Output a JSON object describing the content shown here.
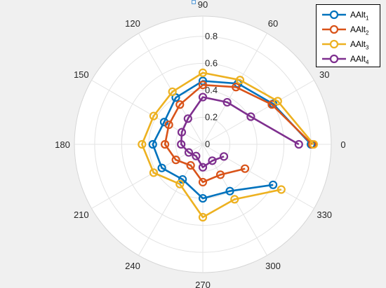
{
  "chart_data": {
    "type": "line",
    "subtype": "polar",
    "theta_unit": "degrees",
    "angle_tick_labels": [
      "0",
      "30",
      "60",
      "90",
      "120",
      "150",
      "180",
      "210",
      "240",
      "270",
      "300",
      "330"
    ],
    "angle_ticks": [
      0,
      30,
      60,
      90,
      120,
      150,
      180,
      210,
      240,
      270,
      300,
      330
    ],
    "r_tick_labels": [
      "0",
      "0.2",
      "0.4",
      "0.6",
      "0.8"
    ],
    "r_ticks": [
      0,
      0.2,
      0.4,
      0.6,
      0.8
    ],
    "rlim": [
      0,
      0.95
    ],
    "grid": true,
    "legend_position": "top-right",
    "series": [
      {
        "name": "AAlt",
        "subscript": "1",
        "color": "#0072bd",
        "theta": [
          0,
          30,
          60,
          90,
          120,
          150,
          180,
          210,
          240,
          270,
          300,
          330
        ],
        "r": [
          0.8,
          0.6,
          0.52,
          0.47,
          0.4,
          0.33,
          0.37,
          0.35,
          0.3,
          0.4,
          0.4,
          0.6
        ]
      },
      {
        "name": "AAlt",
        "subscript": "2",
        "color": "#d95319",
        "theta": [
          0,
          30,
          60,
          90,
          120,
          150,
          180,
          210,
          240,
          270,
          300,
          330
        ],
        "r": [
          0.81,
          0.59,
          0.49,
          0.44,
          0.34,
          0.29,
          0.28,
          0.23,
          0.18,
          0.28,
          0.26,
          0.36
        ]
      },
      {
        "name": "AAlt",
        "subscript": "3",
        "color": "#edb120",
        "theta": [
          0,
          30,
          60,
          90,
          120,
          150,
          180,
          210,
          240,
          270,
          300,
          330
        ],
        "r": [
          0.82,
          0.64,
          0.55,
          0.53,
          0.45,
          0.42,
          0.45,
          0.42,
          0.34,
          0.54,
          0.47,
          0.67
        ]
      },
      {
        "name": "AAlt",
        "subscript": "4",
        "color": "#7e2f8e",
        "theta": [
          0,
          30,
          60,
          90,
          120,
          150,
          180,
          210,
          240,
          270,
          300,
          330
        ],
        "r": [
          0.71,
          0.41,
          0.36,
          0.35,
          0.22,
          0.18,
          0.16,
          0.12,
          0.1,
          0.17,
          0.14,
          0.18
        ]
      }
    ]
  }
}
